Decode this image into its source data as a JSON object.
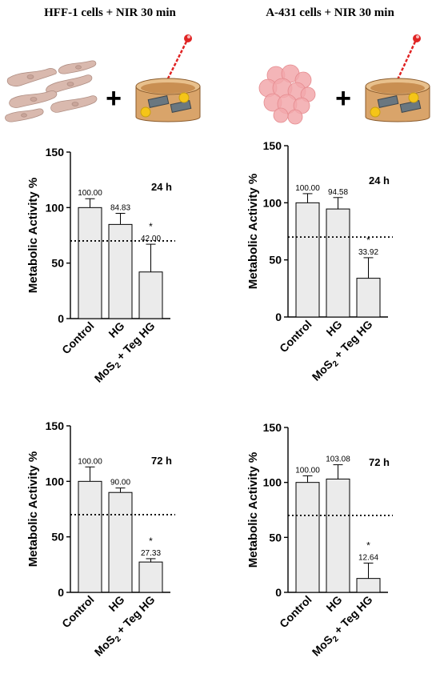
{
  "panels": [
    {
      "title": "HFF-1 cells + NIR 30  min"
    },
    {
      "title": "A-431 cells + NIR 30 min"
    }
  ],
  "plus_sign": "+",
  "colors": {
    "bar_fill": "#ebebeb",
    "bar_stroke": "#000000",
    "cell_color": "#d9b9ae",
    "tumor_color": "#f2a8ab",
    "laser_red": "#e02424",
    "dish_wood": "#d9a46a",
    "nanoparticle_yellow": "#f5c518",
    "sheet_gray": "#6a7780"
  },
  "icons": [
    "fibroblast-cells-icon",
    "tumor-spheroid-icon",
    "hydrogel-dish-with-laser-icon"
  ],
  "chart_data": [
    {
      "type": "bar",
      "panel": "HFF-1 cells + NIR 30  min",
      "annotation": "24 h",
      "categories": [
        "Control",
        "HG",
        "MoS₂ + Teg HG"
      ],
      "values": [
        100.0,
        84.83,
        42.0
      ],
      "value_labels": [
        "100.00",
        "84.83",
        "42.00"
      ],
      "error": [
        8,
        10,
        25
      ],
      "significance": [
        "",
        "",
        "*"
      ],
      "ylabel": "Metabolic Activity %",
      "ylim": [
        0,
        150
      ],
      "yticks": [
        0,
        50,
        100,
        150
      ],
      "reference_line": 70,
      "grid": false
    },
    {
      "type": "bar",
      "panel": "A-431 cells + NIR 30 min",
      "annotation": "24 h",
      "categories": [
        "Control",
        "HG",
        "MoS₂ + Teg HG"
      ],
      "values": [
        100.0,
        94.58,
        33.92
      ],
      "value_labels": [
        "100.00",
        "94.58",
        "33.92"
      ],
      "error": [
        8,
        10,
        18
      ],
      "significance": [
        "",
        "",
        "*"
      ],
      "ylabel": "Metabolic Activity %",
      "ylim": [
        0,
        150
      ],
      "yticks": [
        0,
        50,
        100,
        150
      ],
      "reference_line": 70,
      "grid": false
    },
    {
      "type": "bar",
      "panel": "HFF-1 cells + NIR 30  min",
      "annotation": "72 h",
      "categories": [
        "Control",
        "HG",
        "MoS₂ + Teg HG"
      ],
      "values": [
        100.0,
        90.0,
        27.33
      ],
      "value_labels": [
        "100.00",
        "90.00",
        "27.33"
      ],
      "error": [
        13,
        4,
        3
      ],
      "significance": [
        "",
        "",
        "*"
      ],
      "ylabel": "Metabolic Activity %",
      "ylim": [
        0,
        150
      ],
      "yticks": [
        0,
        50,
        100,
        150
      ],
      "reference_line": 70,
      "grid": false
    },
    {
      "type": "bar",
      "panel": "A-431 cells + NIR 30 min",
      "annotation": "72 h",
      "categories": [
        "Control",
        "HG",
        "MoS₂ + Teg HG"
      ],
      "values": [
        100.0,
        103.08,
        12.64
      ],
      "value_labels": [
        "100.00",
        "103.08",
        "12.64"
      ],
      "error": [
        6,
        13,
        14
      ],
      "significance": [
        "",
        "",
        "*"
      ],
      "ylabel": "Metabolic Activity %",
      "ylim": [
        0,
        150
      ],
      "yticks": [
        0,
        50,
        100,
        150
      ],
      "reference_line": 70,
      "grid": false
    }
  ]
}
